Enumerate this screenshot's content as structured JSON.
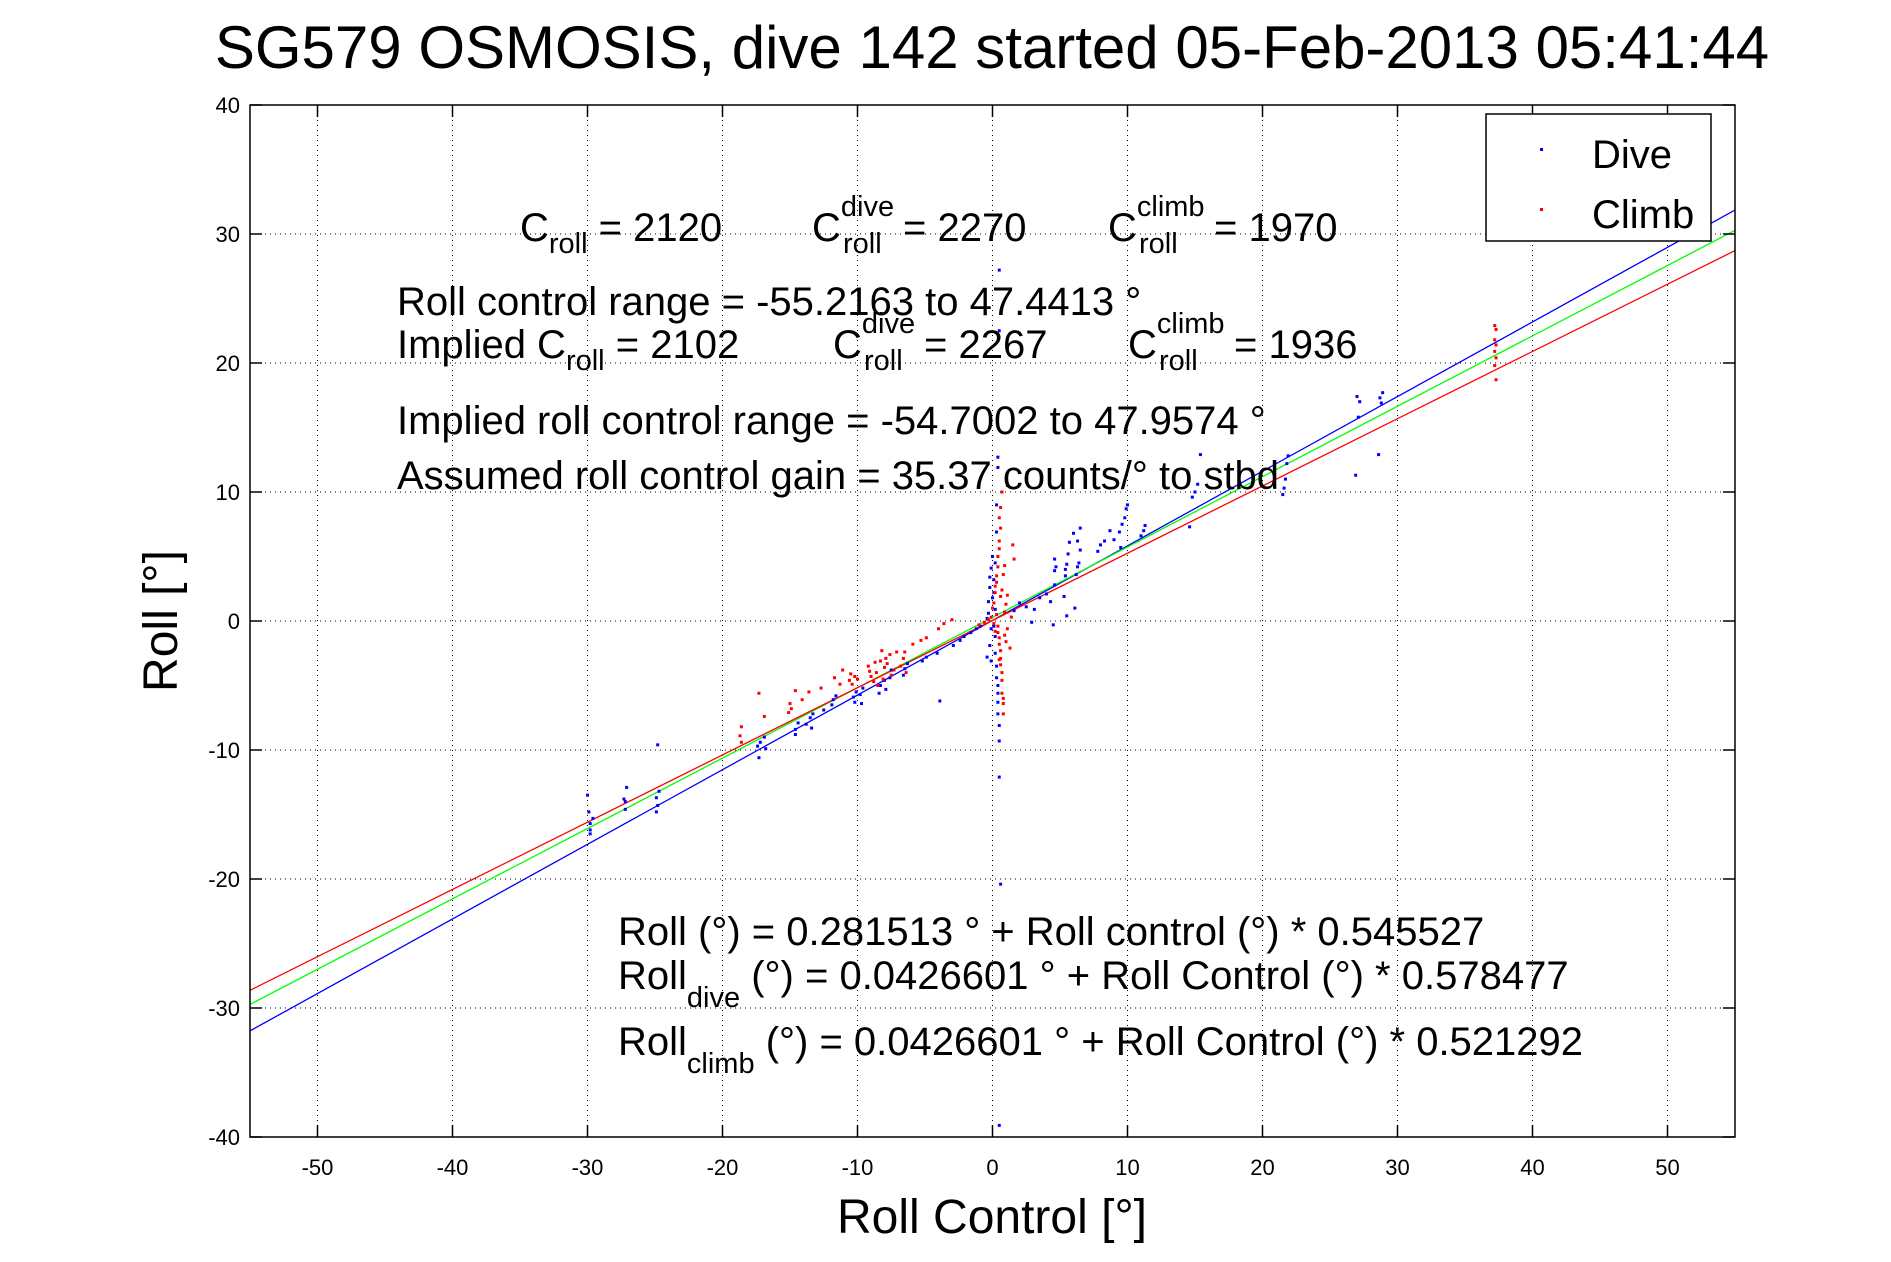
{
  "chart_data": {
    "type": "scatter",
    "title": "SG579 OSMOSIS, dive 142 started 05-Feb-2013 05:41:44",
    "xlabel": "Roll Control [°]",
    "ylabel": "Roll [°]",
    "xlim": [
      -55,
      55
    ],
    "ylim": [
      -40,
      40
    ],
    "xticks": [
      -50,
      -40,
      -30,
      -20,
      -10,
      0,
      10,
      20,
      30,
      40,
      50
    ],
    "yticks": [
      -40,
      -30,
      -20,
      -10,
      0,
      10,
      20,
      30,
      40
    ],
    "grid": true,
    "legend_position": "top-right",
    "series": [
      {
        "name": "Dive",
        "color": "#0000ff",
        "points": [
          [
            -29.8,
            -16.2
          ],
          [
            -29.8,
            -15.7
          ],
          [
            -29.6,
            -15.3
          ],
          [
            -29.9,
            -14.8
          ],
          [
            -30,
            -13.5
          ],
          [
            -29.8,
            -16.5
          ],
          [
            -27.2,
            -14.6
          ],
          [
            -27.3,
            -13.8
          ],
          [
            -27.1,
            -12.9
          ],
          [
            -27.2,
            -14.0
          ],
          [
            -24.8,
            -14.3
          ],
          [
            -24.9,
            -13.7
          ],
          [
            -24.7,
            -13.2
          ],
          [
            -24.8,
            -9.6
          ],
          [
            -24.9,
            -14.8
          ],
          [
            -17.4,
            -9.7
          ],
          [
            -17.3,
            -10.6
          ],
          [
            -17.2,
            -9.4
          ],
          [
            -16.8,
            -9.9
          ],
          [
            -16.9,
            -9.0
          ],
          [
            -14.6,
            -8.4
          ],
          [
            -14.6,
            -8.8
          ],
          [
            -14.4,
            -7.9
          ],
          [
            -13.8,
            -8.0
          ],
          [
            -13.5,
            -7.5
          ],
          [
            -13.4,
            -8.3
          ],
          [
            -13.3,
            -7.2
          ],
          [
            -12.5,
            -6.9
          ],
          [
            -11.8,
            -6.1
          ],
          [
            -11.9,
            -6.5
          ],
          [
            -11.6,
            -5.8
          ],
          [
            -10.3,
            -5.9
          ],
          [
            -10.2,
            -6.3
          ],
          [
            -10.1,
            -5.5
          ],
          [
            -9.8,
            -5.7
          ],
          [
            -9.6,
            -5.2
          ],
          [
            -9.7,
            -6.4
          ],
          [
            -8.4,
            -5.6
          ],
          [
            -8.3,
            -5.0
          ],
          [
            -8.0,
            -4.6
          ],
          [
            -7.9,
            -5.3
          ],
          [
            -7.6,
            -4.4
          ],
          [
            -7.5,
            -3.8
          ],
          [
            -6.6,
            -4.2
          ],
          [
            -6.5,
            -3.7
          ],
          [
            -6.3,
            -3.3
          ],
          [
            -5.2,
            -3.1
          ],
          [
            -4.9,
            -2.8
          ],
          [
            -4.1,
            -2.5
          ],
          [
            -3.9,
            -6.2
          ],
          [
            -2.9,
            -1.9
          ],
          [
            -2.4,
            -1.5
          ],
          [
            -2.1,
            -1.2
          ],
          [
            -1.6,
            -0.9
          ],
          [
            -1.2,
            -0.6
          ],
          [
            -0.9,
            -0.4
          ],
          [
            -0.4,
            0.2
          ],
          [
            -0.3,
            1.5
          ],
          [
            -0.2,
            2.6
          ],
          [
            -0.1,
            4.1
          ],
          [
            0.0,
            5.0
          ],
          [
            0.1,
            3.2
          ],
          [
            0.2,
            4.5
          ],
          [
            0.3,
            6.9
          ],
          [
            0.3,
            9.0
          ],
          [
            0.4,
            11.9
          ],
          [
            0.4,
            12.7
          ],
          [
            0.5,
            22.5
          ],
          [
            0.5,
            27.2
          ],
          [
            0.2,
            0.9
          ],
          [
            0.1,
            -0.4
          ],
          [
            0.2,
            -1.2
          ],
          [
            0.2,
            -2.5
          ],
          [
            0.3,
            -3.5
          ],
          [
            0.3,
            -4.4
          ],
          [
            0.4,
            -5.0
          ],
          [
            0.4,
            -5.6
          ],
          [
            0.4,
            -6.3
          ],
          [
            0.4,
            -7.2
          ],
          [
            0.5,
            -8.1
          ],
          [
            0.5,
            -9.3
          ],
          [
            0.5,
            -12.1
          ],
          [
            0.6,
            -20.4
          ],
          [
            0.5,
            -39.1
          ],
          [
            -0.2,
            -1.9
          ],
          [
            -0.4,
            -2.8
          ],
          [
            -0.1,
            -0.6
          ],
          [
            -0.3,
            0.6
          ],
          [
            0.0,
            1.8
          ],
          [
            0.1,
            2.2
          ],
          [
            -0.2,
            3.4
          ],
          [
            -0.1,
            -3.1
          ],
          [
            1.6,
            0.8
          ],
          [
            2.0,
            1.4
          ],
          [
            2.5,
            1.1
          ],
          [
            2.9,
            -0.1
          ],
          [
            3.1,
            0.9
          ],
          [
            3.5,
            1.8
          ],
          [
            4.0,
            2.1
          ],
          [
            4.3,
            1.5
          ],
          [
            4.6,
            2.8
          ],
          [
            4.6,
            3.9
          ],
          [
            4.7,
            4.2
          ],
          [
            4.6,
            4.8
          ],
          [
            5.4,
            3.5
          ],
          [
            5.4,
            4.0
          ],
          [
            5.5,
            4.4
          ],
          [
            5.6,
            5.2
          ],
          [
            5.7,
            6.1
          ],
          [
            5.3,
            1.9
          ],
          [
            6.2,
            3.6
          ],
          [
            6.3,
            4.2
          ],
          [
            6.4,
            4.5
          ],
          [
            6.5,
            5.5
          ],
          [
            6.3,
            6.2
          ],
          [
            6.1,
            1.0
          ],
          [
            5.5,
            0.4
          ],
          [
            4.5,
            -0.3
          ],
          [
            6.0,
            6.8
          ],
          [
            6.5,
            7.2
          ],
          [
            7.8,
            5.4
          ],
          [
            8.0,
            5.9
          ],
          [
            8.3,
            6.2
          ],
          [
            8.7,
            7.0
          ],
          [
            9.0,
            6.3
          ],
          [
            9.4,
            6.9
          ],
          [
            9.6,
            7.5
          ],
          [
            9.8,
            8.0
          ],
          [
            9.9,
            8.7
          ],
          [
            10.0,
            9.0
          ],
          [
            9.5,
            5.7
          ],
          [
            11.0,
            6.6
          ],
          [
            11.2,
            7.0
          ],
          [
            11.3,
            7.4
          ],
          [
            14.6,
            7.3
          ],
          [
            14.8,
            9.6
          ],
          [
            15.0,
            10.0
          ],
          [
            15.2,
            10.6
          ],
          [
            15.4,
            12.9
          ],
          [
            21.6,
            10.3
          ],
          [
            21.7,
            11.0
          ],
          [
            21.8,
            12.2
          ],
          [
            21.9,
            12.8
          ],
          [
            21.5,
            9.8
          ],
          [
            26.9,
            11.3
          ],
          [
            27.1,
            15.8
          ],
          [
            27.2,
            17.0
          ],
          [
            27.0,
            17.4
          ],
          [
            28.6,
            12.9
          ],
          [
            28.8,
            16.9
          ],
          [
            28.7,
            17.3
          ],
          [
            28.9,
            17.7
          ]
        ]
      },
      {
        "name": "Climb",
        "color": "#ff0000",
        "points": [
          [
            -18.6,
            -8.2
          ],
          [
            -18.7,
            -8.9
          ],
          [
            -18.6,
            -9.4
          ],
          [
            -17.3,
            -5.6
          ],
          [
            -16.9,
            -7.4
          ],
          [
            -15.1,
            -7.1
          ],
          [
            -15.0,
            -6.4
          ],
          [
            -14.9,
            -6.8
          ],
          [
            -14.6,
            -5.4
          ],
          [
            -14.1,
            -6.1
          ],
          [
            -13.6,
            -5.5
          ],
          [
            -12.7,
            -5.2
          ],
          [
            -11.7,
            -4.4
          ],
          [
            -11.3,
            -4.9
          ],
          [
            -11.1,
            -3.8
          ],
          [
            -10.6,
            -4.6
          ],
          [
            -10.5,
            -4.1
          ],
          [
            -10.4,
            -4.9
          ],
          [
            -10.2,
            -4.3
          ],
          [
            -10.0,
            -4.5
          ],
          [
            -9.2,
            -3.5
          ],
          [
            -9.1,
            -3.9
          ],
          [
            -9.0,
            -4.3
          ],
          [
            -8.8,
            -4.7
          ],
          [
            -8.7,
            -3.2
          ],
          [
            -8.6,
            -4.0
          ],
          [
            -8.5,
            -5.0
          ],
          [
            -8.3,
            -3.1
          ],
          [
            -8.2,
            -2.3
          ],
          [
            -8.1,
            -4.5
          ],
          [
            -8.0,
            -3.6
          ],
          [
            -7.9,
            -2.9
          ],
          [
            -7.8,
            -3.3
          ],
          [
            -7.6,
            -2.6
          ],
          [
            -7.5,
            -4.2
          ],
          [
            -7.3,
            -3.8
          ],
          [
            -7.1,
            -2.4
          ],
          [
            -6.8,
            -3.5
          ],
          [
            -6.6,
            -2.9
          ],
          [
            -6.5,
            -2.4
          ],
          [
            -6.4,
            -4.0
          ],
          [
            -5.9,
            -1.8
          ],
          [
            -5.3,
            -1.5
          ],
          [
            -4.9,
            -1.3
          ],
          [
            -4.0,
            -0.6
          ],
          [
            -3.6,
            -0.2
          ],
          [
            -3.0,
            0.1
          ],
          [
            -1.0,
            -0.3
          ],
          [
            -0.6,
            -0.1
          ],
          [
            -0.3,
            0.1
          ],
          [
            -0.1,
            0.3
          ],
          [
            0.0,
            1.0
          ],
          [
            0.1,
            1.4
          ],
          [
            0.2,
            2.2
          ],
          [
            0.2,
            2.7
          ],
          [
            0.3,
            3.0
          ],
          [
            0.3,
            3.5
          ],
          [
            0.4,
            4.2
          ],
          [
            0.4,
            5.0
          ],
          [
            0.5,
            5.6
          ],
          [
            0.5,
            6.2
          ],
          [
            0.4,
            -0.4
          ],
          [
            0.4,
            -0.9
          ],
          [
            0.5,
            -1.3
          ],
          [
            0.5,
            -1.8
          ],
          [
            0.6,
            -2.3
          ],
          [
            0.6,
            -2.9
          ],
          [
            0.6,
            -3.4
          ],
          [
            0.7,
            -4.0
          ],
          [
            0.7,
            -4.6
          ],
          [
            0.7,
            -5.6
          ],
          [
            0.8,
            -6.4
          ],
          [
            0.8,
            -7.2
          ],
          [
            0.8,
            -6.0
          ],
          [
            0.9,
            0.7
          ],
          [
            1.0,
            1.3
          ],
          [
            1.1,
            2.0
          ],
          [
            1.1,
            -0.6
          ],
          [
            0.9,
            -1.1
          ],
          [
            1.0,
            -1.6
          ],
          [
            0.2,
            -0.8
          ],
          [
            0.3,
            0.5
          ],
          [
            0.1,
            -0.2
          ],
          [
            0.6,
            1.9
          ],
          [
            0.7,
            2.4
          ],
          [
            0.8,
            3.6
          ],
          [
            0.9,
            4.3
          ],
          [
            0.6,
            7.2
          ],
          [
            0.5,
            8.0
          ],
          [
            0.6,
            8.8
          ],
          [
            0.7,
            10.0
          ],
          [
            1.1,
            10.5
          ],
          [
            1.5,
            5.9
          ],
          [
            1.6,
            4.8
          ],
          [
            1.4,
            0.3
          ],
          [
            1.3,
            -2.1
          ],
          [
            0.5,
            -3.0
          ],
          [
            37.2,
            22.9
          ],
          [
            37.3,
            22.6
          ],
          [
            37.2,
            21.8
          ],
          [
            37.3,
            21.4
          ],
          [
            37.2,
            20.9
          ],
          [
            37.3,
            20.4
          ],
          [
            37.2,
            19.8
          ],
          [
            37.3,
            18.7
          ]
        ]
      }
    ],
    "fit_lines": [
      {
        "name": "Dive fit",
        "color": "#0000ff",
        "intercept": 0.0426601,
        "slope": 0.578477
      },
      {
        "name": "Overall fit",
        "color": "#00ff00",
        "intercept": 0.281513,
        "slope": 0.545527
      },
      {
        "name": "Climb fit",
        "color": "#ff0000",
        "intercept": 0.0426601,
        "slope": 0.521292
      }
    ],
    "legend": [
      {
        "label": "Dive",
        "color": "#0000ff"
      },
      {
        "label": "Climb",
        "color": "#ff0000"
      }
    ],
    "annotations": {
      "c_roll": {
        "base": "C",
        "sub": "roll",
        "value": " = 2120"
      },
      "c_roll_dive": {
        "base": "C",
        "sup": "dive",
        "sub": "roll",
        "value": " = 2270"
      },
      "c_roll_climb": {
        "base": "C",
        "sup": "climb",
        "sub": "roll",
        "value": " = 1970"
      },
      "roll_control_range": "Roll control range = -55.2163 to 47.4413 °",
      "implied_prefix": "Implied C",
      "implied_sub": "roll",
      "implied_value": " = 2102",
      "implied_c_roll_dive": {
        "base": "C",
        "sup": "dive",
        "sub": "roll",
        "value": " = 2267"
      },
      "implied_c_roll_climb": {
        "base": "C",
        "sup": "climb",
        "sub": "roll",
        "value": " = 1936"
      },
      "implied_range": "Implied roll control range = -54.7002 to 47.9574 °",
      "gain": "Assumed roll control gain = 35.37 counts/° to stbd",
      "fit_all": "Roll (°) = 0.281513 ° + Roll control (°) * 0.545527",
      "fit_dive_base": "Roll",
      "fit_dive_sub": "dive",
      "fit_dive_rest": " (°) = 0.0426601 ° + Roll Control (°) * 0.578477",
      "fit_climb_base": "Roll",
      "fit_climb_sub": "climb",
      "fit_climb_rest": " (°) = 0.0426601 ° + Roll Control (°) * 0.521292"
    }
  }
}
